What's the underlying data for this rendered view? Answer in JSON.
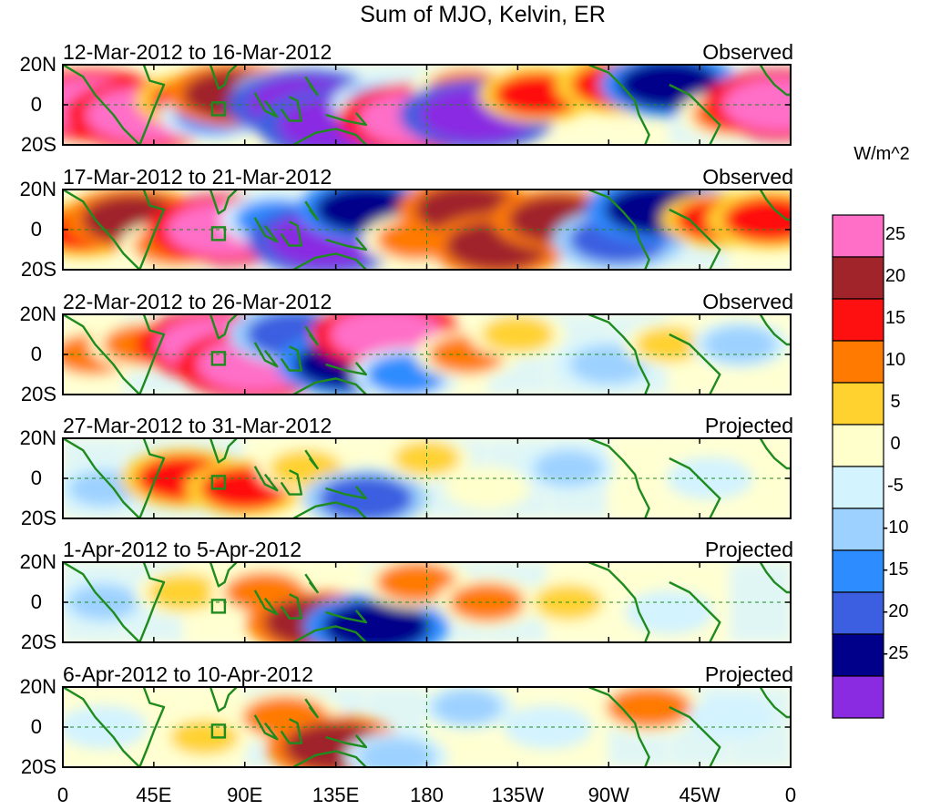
{
  "title": "Sum of MJO, Kelvin, ER",
  "chart_data": {
    "type": "heatmap",
    "title": "Sum of MJO, Kelvin, ER",
    "xlabel": "",
    "ylabel": "",
    "x_range": [
      0,
      360
    ],
    "y_range": [
      -20,
      20
    ],
    "x_ticks": [
      "0",
      "45E",
      "90E",
      "135E",
      "180",
      "135W",
      "90W",
      "45W",
      "0"
    ],
    "y_ticks": [
      "20N",
      "0",
      "20S"
    ],
    "panels": [
      {
        "date_range": "12-Mar-2012 to 16-Mar-2012",
        "status": "Observed",
        "blobs": [
          {
            "lon": 15,
            "lat": 0,
            "value": 28
          },
          {
            "lon": 40,
            "lat": -5,
            "value": 28
          },
          {
            "lon": 65,
            "lat": 2,
            "value": 15
          },
          {
            "lon": 75,
            "lat": -5,
            "value": -12
          },
          {
            "lon": 85,
            "lat": 5,
            "value": 22
          },
          {
            "lon": 108,
            "lat": 5,
            "value": -8
          },
          {
            "lon": 120,
            "lat": 0,
            "value": -28
          },
          {
            "lon": 135,
            "lat": -10,
            "value": -28
          },
          {
            "lon": 160,
            "lat": 0,
            "value": -12
          },
          {
            "lon": 175,
            "lat": -7,
            "value": 28
          },
          {
            "lon": 200,
            "lat": 8,
            "value": 12
          },
          {
            "lon": 205,
            "lat": -5,
            "value": -28
          },
          {
            "lon": 235,
            "lat": 5,
            "value": 15
          },
          {
            "lon": 275,
            "lat": 10,
            "value": 18
          },
          {
            "lon": 300,
            "lat": 10,
            "value": -22
          },
          {
            "lon": 330,
            "lat": -5,
            "value": 10
          },
          {
            "lon": 355,
            "lat": 0,
            "value": 28
          }
        ]
      },
      {
        "date_range": "17-Mar-2012 to 21-Mar-2012",
        "status": "Observed",
        "blobs": [
          {
            "lon": 10,
            "lat": 0,
            "value": 15
          },
          {
            "lon": 35,
            "lat": 5,
            "value": 22
          },
          {
            "lon": 55,
            "lat": -8,
            "value": 12
          },
          {
            "lon": 80,
            "lat": 0,
            "value": 28
          },
          {
            "lon": 105,
            "lat": 5,
            "value": -12
          },
          {
            "lon": 130,
            "lat": -5,
            "value": -28
          },
          {
            "lon": 150,
            "lat": 10,
            "value": -22
          },
          {
            "lon": 175,
            "lat": -5,
            "value": 12
          },
          {
            "lon": 200,
            "lat": 10,
            "value": 22
          },
          {
            "lon": 215,
            "lat": -8,
            "value": 22
          },
          {
            "lon": 245,
            "lat": 5,
            "value": 20
          },
          {
            "lon": 275,
            "lat": -5,
            "value": -20
          },
          {
            "lon": 295,
            "lat": 10,
            "value": -25
          },
          {
            "lon": 325,
            "lat": 5,
            "value": 15
          },
          {
            "lon": 350,
            "lat": 5,
            "value": 18
          }
        ]
      },
      {
        "date_range": "22-Mar-2012 to 26-Mar-2012",
        "status": "Observed",
        "blobs": [
          {
            "lon": 15,
            "lat": 0,
            "value": 12
          },
          {
            "lon": 40,
            "lat": 5,
            "value": 12
          },
          {
            "lon": 75,
            "lat": 5,
            "value": 28
          },
          {
            "lon": 95,
            "lat": -5,
            "value": 28
          },
          {
            "lon": 115,
            "lat": 10,
            "value": -20
          },
          {
            "lon": 140,
            "lat": -5,
            "value": -22
          },
          {
            "lon": 160,
            "lat": 10,
            "value": 26
          },
          {
            "lon": 170,
            "lat": -10,
            "value": -12
          },
          {
            "lon": 200,
            "lat": 0,
            "value": 10
          },
          {
            "lon": 225,
            "lat": 10,
            "value": 8
          },
          {
            "lon": 270,
            "lat": -5,
            "value": -10
          },
          {
            "lon": 300,
            "lat": 5,
            "value": 6
          },
          {
            "lon": 335,
            "lat": 5,
            "value": -8
          }
        ]
      },
      {
        "date_range": "27-Mar-2012 to 31-Mar-2012",
        "status": "Projected",
        "blobs": [
          {
            "lon": 20,
            "lat": -5,
            "value": -6
          },
          {
            "lon": 60,
            "lat": 0,
            "value": 18
          },
          {
            "lon": 90,
            "lat": -5,
            "value": 15
          },
          {
            "lon": 120,
            "lat": 5,
            "value": 8
          },
          {
            "lon": 150,
            "lat": -10,
            "value": -18
          },
          {
            "lon": 180,
            "lat": 10,
            "value": 5
          },
          {
            "lon": 210,
            "lat": -5,
            "value": 4
          },
          {
            "lon": 250,
            "lat": 5,
            "value": -6
          },
          {
            "lon": 320,
            "lat": 0,
            "value": -4
          }
        ]
      },
      {
        "date_range": "1-Apr-2012 to 5-Apr-2012",
        "status": "Projected",
        "blobs": [
          {
            "lon": 20,
            "lat": 0,
            "value": -6
          },
          {
            "lon": 60,
            "lat": 5,
            "value": 8
          },
          {
            "lon": 100,
            "lat": 5,
            "value": 12
          },
          {
            "lon": 125,
            "lat": -10,
            "value": 22
          },
          {
            "lon": 155,
            "lat": -12,
            "value": -24
          },
          {
            "lon": 175,
            "lat": 10,
            "value": 12
          },
          {
            "lon": 210,
            "lat": 0,
            "value": 10
          },
          {
            "lon": 250,
            "lat": 0,
            "value": 6
          },
          {
            "lon": 300,
            "lat": -5,
            "value": -5
          }
        ]
      },
      {
        "date_range": "6-Apr-2012 to 10-Apr-2012",
        "status": "Projected",
        "blobs": [
          {
            "lon": 20,
            "lat": 0,
            "value": -5
          },
          {
            "lon": 70,
            "lat": -5,
            "value": 6
          },
          {
            "lon": 110,
            "lat": 5,
            "value": 14
          },
          {
            "lon": 135,
            "lat": -10,
            "value": 22
          },
          {
            "lon": 165,
            "lat": -15,
            "value": -10
          },
          {
            "lon": 200,
            "lat": 10,
            "value": -6
          },
          {
            "lon": 240,
            "lat": 0,
            "value": -5
          },
          {
            "lon": 290,
            "lat": 10,
            "value": 14
          },
          {
            "lon": 330,
            "lat": 5,
            "value": -4
          }
        ]
      }
    ],
    "colorbar": {
      "units": "W/m^2",
      "levels": [
        "25",
        "20",
        "15",
        "10",
        "5",
        "0",
        "-5",
        "-10",
        "-15",
        "-20",
        "-25"
      ],
      "colors": [
        "#ff6ec7",
        "#a0242a",
        "#ff1010",
        "#ff7a00",
        "#ffd230",
        "#ffffcc",
        "#d3f3ff",
        "#9dd1ff",
        "#2d8cff",
        "#3b5fe0",
        "#00008b",
        "#8a2be2"
      ]
    }
  },
  "colors": {
    "coastline": "#1e8b1e",
    "frame": "#000000"
  }
}
